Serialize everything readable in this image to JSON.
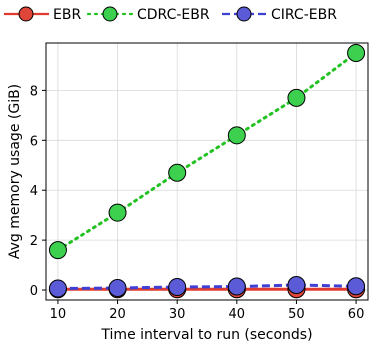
{
  "chart_data": {
    "type": "line",
    "xlabel": "Time interval to run (seconds)",
    "ylabel": "Avg memory usage (GiB)",
    "x": [
      10,
      20,
      30,
      40,
      50,
      60
    ],
    "x_ticks": [
      "10",
      "20",
      "30",
      "40",
      "50",
      "60"
    ],
    "y_ticks": [
      "0",
      "2",
      "4",
      "6",
      "8"
    ],
    "xlim": [
      8,
      62
    ],
    "ylim": [
      -0.4,
      9.9
    ],
    "grid": true,
    "legend_placement": "top (outside plot area)",
    "series": [
      {
        "name": "EBR",
        "values": [
          0.03,
          0.03,
          0.03,
          0.03,
          0.03,
          0.03
        ],
        "color": "#e03b2f",
        "line_style": "solid",
        "marker_color": "#e0453a"
      },
      {
        "name": "CDRC-EBR",
        "values": [
          1.6,
          3.1,
          4.7,
          6.2,
          7.7,
          9.5
        ],
        "color": "#22c222",
        "line_style": "dotted",
        "marker_color": "#3cd04e"
      },
      {
        "name": "CIRC-EBR",
        "values": [
          0.06,
          0.08,
          0.12,
          0.14,
          0.2,
          0.15
        ],
        "color": "#3f3fd6",
        "line_style": "dashed",
        "marker_color": "#5b5bd8"
      }
    ]
  }
}
